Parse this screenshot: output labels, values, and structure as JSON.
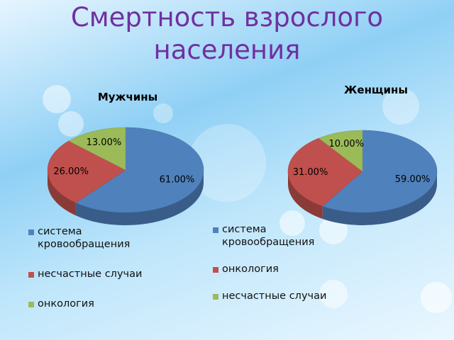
{
  "title": "Смертность взрослого населения",
  "chart_data": [
    {
      "type": "pie",
      "title": "Мужчины",
      "categories": [
        "система кровообращения",
        "несчастные случаи",
        "онкология"
      ],
      "values": [
        61,
        26,
        13
      ],
      "value_labels": [
        "61.00%",
        "26.00%",
        "13.00%"
      ],
      "colors": [
        "#4f81bd",
        "#c0504d",
        "#9bbb59"
      ]
    },
    {
      "type": "pie",
      "title": "Женщины",
      "categories": [
        "система кровообращения",
        "онкология",
        "несчастные случаи"
      ],
      "values": [
        59,
        31,
        10
      ],
      "value_labels": [
        "59.00%",
        "31.00%",
        "10.00%"
      ],
      "colors": [
        "#4f81bd",
        "#c0504d",
        "#9bbb59"
      ]
    }
  ]
}
